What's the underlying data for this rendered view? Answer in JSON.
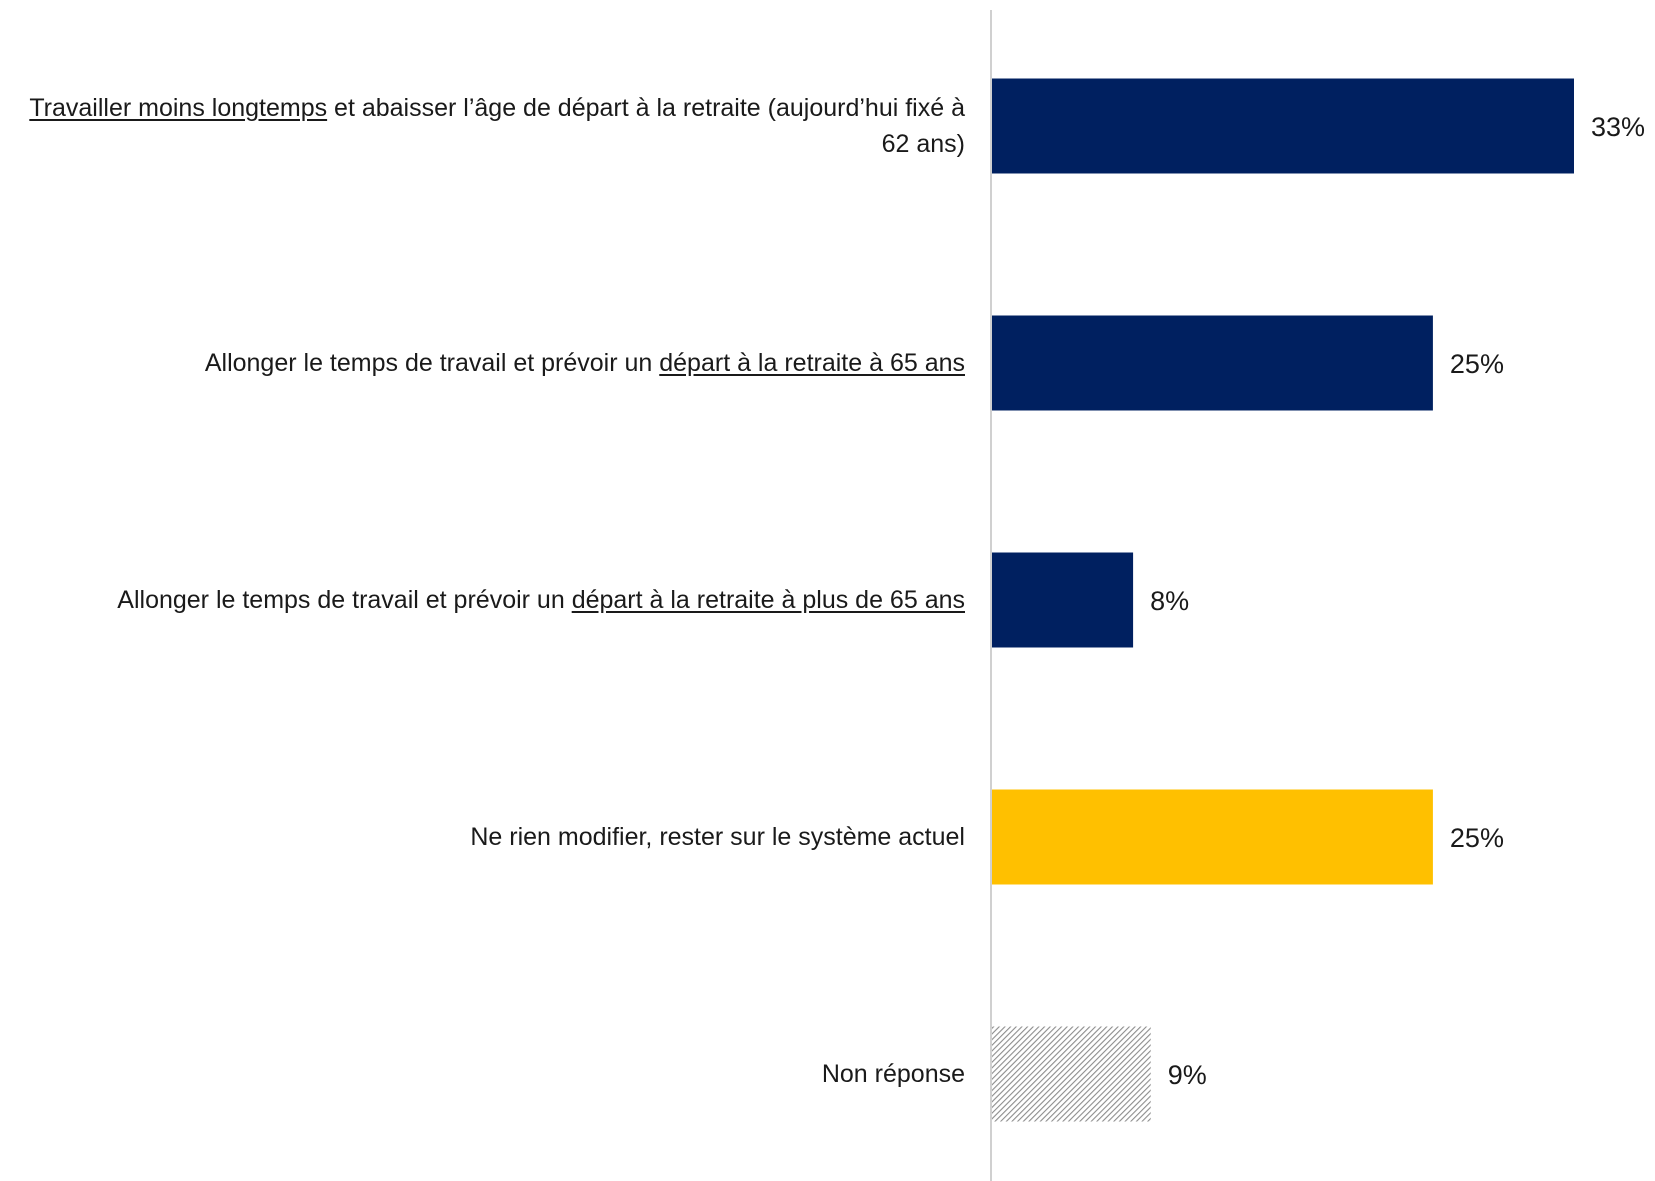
{
  "chart_data": {
    "type": "bar",
    "orientation": "horizontal",
    "categories": [
      [
        {
          "text": "Travailler moins longtemps",
          "u": true
        },
        {
          "text": " et abaisser l’âge de départ à la retraite (aujourd’hui fixé à 62 ans)",
          "u": false
        }
      ],
      [
        {
          "text": "Allonger le temps de travail et prévoir un ",
          "u": false
        },
        {
          "text": "départ à la retraite à 65 ans",
          "u": true
        }
      ],
      [
        {
          "text": "Allonger le temps de travail et prévoir un ",
          "u": false
        },
        {
          "text": "départ à la retraite à plus de 65 ans",
          "u": true
        }
      ],
      [
        {
          "text": "Ne rien modifier, rester sur le système actuel",
          "u": false
        }
      ],
      [
        {
          "text": "Non réponse",
          "u": false
        }
      ]
    ],
    "values": [
      33,
      25,
      8,
      25,
      9
    ],
    "value_labels": [
      "33%",
      "25%",
      "8%",
      "25%",
      "9%"
    ],
    "bar_styles": [
      "solid",
      "solid",
      "solid",
      "solid",
      "hatched"
    ],
    "colors": [
      "#002060",
      "#002060",
      "#002060",
      "#FFC000",
      "#A6A6A6"
    ],
    "xlim": [
      0,
      33
    ],
    "title": "",
    "xlabel": "",
    "ylabel": "",
    "grid": false,
    "legend": "none"
  }
}
